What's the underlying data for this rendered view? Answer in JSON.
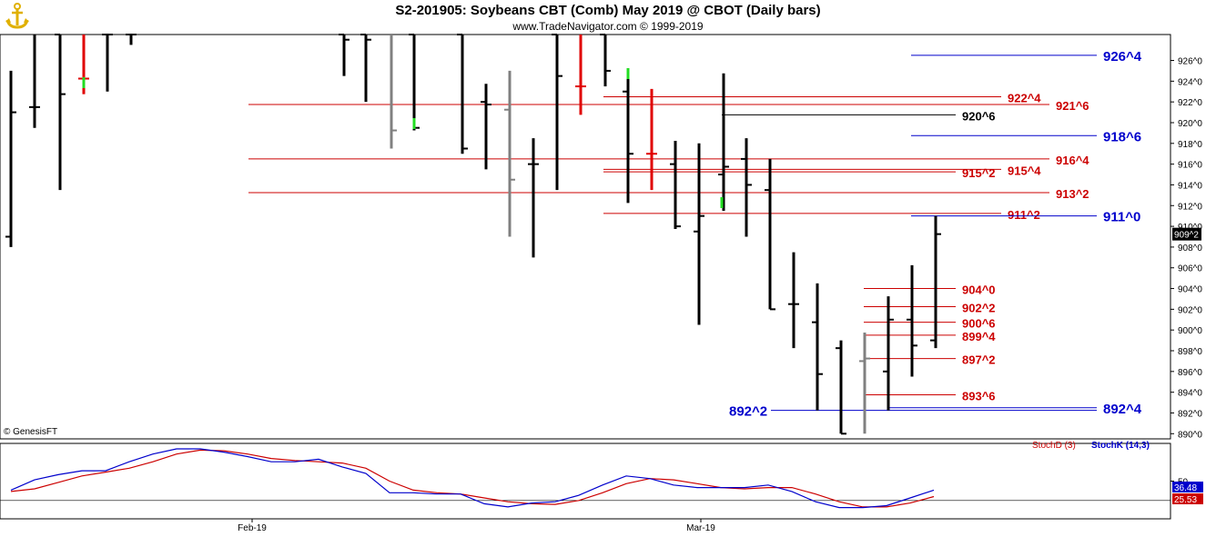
{
  "header": {
    "title": "S2-201905:  Soybeans CBT (Comb) May 2019 @ CBOT  (Daily bars)",
    "subtitle": "www.TradeNavigator.com © 1999-2019",
    "logo_icon": "anchor-logo-icon"
  },
  "colors": {
    "bar": "#000000",
    "bar_gray": "#808080",
    "bar_red": "#e00000",
    "bar_green": "#22dd22",
    "level_red": "#cc0000",
    "level_blue": "#0000cc",
    "stoch_d": "#cc0000",
    "stoch_k": "#0000cc"
  },
  "chart_data": [
    {
      "type": "ohlc",
      "price_unit": "cents/bu, quarter-cent notation (^x = x/8)",
      "ylim": [
        889.5,
        928.5
      ],
      "y_ticks": [
        "890^0",
        "892^0",
        "894^0",
        "896^0",
        "898^0",
        "900^0",
        "902^0",
        "904^0",
        "906^0",
        "908^0",
        "910^0",
        "912^0",
        "914^0",
        "916^0",
        "918^0",
        "920^0",
        "922^0",
        "924^0",
        "926^0"
      ],
      "x_labels": [
        "Feb-19",
        "Mar-19"
      ],
      "last_price_label": "909^2",
      "copyright": "© GenesisFT",
      "bars": [
        {
          "o": 909.0,
          "h": 925.0,
          "l": 908.0,
          "c": 921.0,
          "color": "black"
        },
        {
          "o": 921.5,
          "h": 928.5,
          "l": 919.5,
          "c": 921.5,
          "color": "black"
        },
        {
          "o": 928.5,
          "h": 928.5,
          "l": 913.5,
          "c": 922.75,
          "color": "black"
        },
        {
          "o": 924.25,
          "h": 928.5,
          "l": 922.75,
          "c": 924.25,
          "color": "red"
        },
        {
          "o": 928.5,
          "h": 928.5,
          "l": 923.0,
          "c": 928.5,
          "color": "black"
        },
        {
          "o": 928.5,
          "h": 928.5,
          "l": 927.5,
          "c": 928.5,
          "color": "black"
        },
        {
          "o": 928.5,
          "h": 928.5,
          "l": 924.5,
          "c": 928.0,
          "color": "black"
        },
        {
          "o": 928.5,
          "h": 928.5,
          "l": 922.0,
          "c": 928.0,
          "color": "black"
        },
        {
          "o": 928.5,
          "h": 928.5,
          "l": 917.5,
          "c": 919.25,
          "color": "gray"
        },
        {
          "o": 928.5,
          "h": 928.5,
          "l": 919.25,
          "c": 919.5,
          "color": "black"
        },
        {
          "o": 928.5,
          "h": 928.5,
          "l": 917.0,
          "c": 917.5,
          "color": "black"
        },
        {
          "o": 922.0,
          "h": 923.75,
          "l": 915.5,
          "c": 921.75,
          "color": "black"
        },
        {
          "o": 921.25,
          "h": 925.0,
          "l": 909.0,
          "c": 914.5,
          "color": "gray"
        },
        {
          "o": 916.0,
          "h": 918.5,
          "l": 907.0,
          "c": 916.0,
          "color": "black"
        },
        {
          "o": 928.5,
          "h": 928.5,
          "l": 913.5,
          "c": 924.5,
          "color": "black"
        },
        {
          "o": 923.5,
          "h": 928.5,
          "l": 920.75,
          "c": 923.5,
          "color": "red"
        },
        {
          "o": 928.5,
          "h": 928.5,
          "l": 923.5,
          "c": 925.0,
          "color": "black"
        },
        {
          "o": 923.0,
          "h": 925.25,
          "l": 912.25,
          "c": 917.0,
          "color": "black"
        },
        {
          "o": 917.0,
          "h": 923.25,
          "l": 913.5,
          "c": 917.0,
          "color": "red"
        },
        {
          "o": 916.0,
          "h": 918.25,
          "l": 909.75,
          "c": 910.0,
          "color": "black"
        },
        {
          "o": 909.5,
          "h": 918.0,
          "l": 900.5,
          "c": 911.0,
          "color": "black"
        },
        {
          "o": 915.0,
          "h": 924.75,
          "l": 911.5,
          "c": 915.75,
          "color": "black"
        },
        {
          "o": 916.5,
          "h": 918.5,
          "l": 909.0,
          "c": 914.0,
          "color": "black"
        },
        {
          "o": 913.5,
          "h": 916.5,
          "l": 902.0,
          "c": 902.0,
          "color": "black"
        },
        {
          "o": 902.5,
          "h": 907.5,
          "l": 898.25,
          "c": 902.5,
          "color": "black"
        },
        {
          "o": 900.75,
          "h": 904.5,
          "l": 892.25,
          "c": 895.75,
          "color": "black"
        },
        {
          "o": 898.25,
          "h": 899.0,
          "l": 890.0,
          "c": 890.0,
          "color": "black"
        },
        {
          "o": 897.0,
          "h": 899.75,
          "l": 890.0,
          "c": 897.25,
          "color": "gray"
        },
        {
          "o": 896.0,
          "h": 903.25,
          "l": 892.25,
          "c": 901.0,
          "color": "black"
        },
        {
          "o": 901.0,
          "h": 906.25,
          "l": 895.5,
          "c": 898.5,
          "color": "black"
        },
        {
          "o": 899.0,
          "h": 911.0,
          "l": 898.25,
          "c": 909.25,
          "color": "black"
        }
      ],
      "levels": [
        {
          "label": "926^4",
          "color": "blue",
          "align": "right"
        },
        {
          "label": "922^4",
          "color": "red",
          "align": "right"
        },
        {
          "label": "921^6",
          "color": "red",
          "align": "right"
        },
        {
          "label": "920^6",
          "color": "black",
          "align": "right"
        },
        {
          "label": "918^6",
          "color": "blue",
          "align": "right"
        },
        {
          "label": "916^4",
          "color": "red",
          "align": "right"
        },
        {
          "label": "915^4",
          "color": "red",
          "align": "right"
        },
        {
          "label": "915^2",
          "color": "red",
          "align": "right"
        },
        {
          "label": "913^2",
          "color": "red",
          "align": "right"
        },
        {
          "label": "911^2",
          "color": "red",
          "align": "right"
        },
        {
          "label": "911^0",
          "color": "blue",
          "align": "right"
        },
        {
          "label": "904^0",
          "color": "red",
          "align": "right"
        },
        {
          "label": "902^2",
          "color": "red",
          "align": "right"
        },
        {
          "label": "900^6",
          "color": "red",
          "align": "right"
        },
        {
          "label": "899^4",
          "color": "red",
          "align": "right"
        },
        {
          "label": "897^2",
          "color": "red",
          "align": "right"
        },
        {
          "label": "893^6",
          "color": "red",
          "align": "right"
        },
        {
          "label": "892^4",
          "color": "blue",
          "align": "right"
        },
        {
          "label": "892^2",
          "color": "blue",
          "align": "left"
        }
      ]
    },
    {
      "type": "line",
      "indicator": "Stochastic",
      "legend": [
        "StochD (3)",
        "StochK (14,3)"
      ],
      "ylim": [
        0,
        100
      ],
      "y_ticks": [
        "50"
      ],
      "last_values": {
        "k": "36.48",
        "d": "25.53"
      },
      "series": [
        {
          "name": "StochK (14,3)",
          "values": [
            36,
            52,
            60,
            66,
            66,
            80,
            92,
            100,
            100,
            95,
            88,
            80,
            80,
            84,
            72,
            62,
            32,
            32,
            30,
            30,
            15,
            10,
            16,
            18,
            28,
            44,
            58,
            54,
            44,
            40,
            40,
            40,
            44,
            34,
            18,
            9,
            9,
            12,
            24,
            36
          ]
        },
        {
          "name": "StochD (3)",
          "values": [
            34,
            38,
            48,
            58,
            64,
            70,
            80,
            92,
            98,
            97,
            92,
            85,
            82,
            80,
            78,
            70,
            50,
            36,
            32,
            30,
            24,
            18,
            15,
            14,
            20,
            32,
            46,
            54,
            52,
            46,
            40,
            38,
            40,
            40,
            30,
            18,
            10,
            10,
            16,
            26
          ]
        }
      ]
    }
  ]
}
